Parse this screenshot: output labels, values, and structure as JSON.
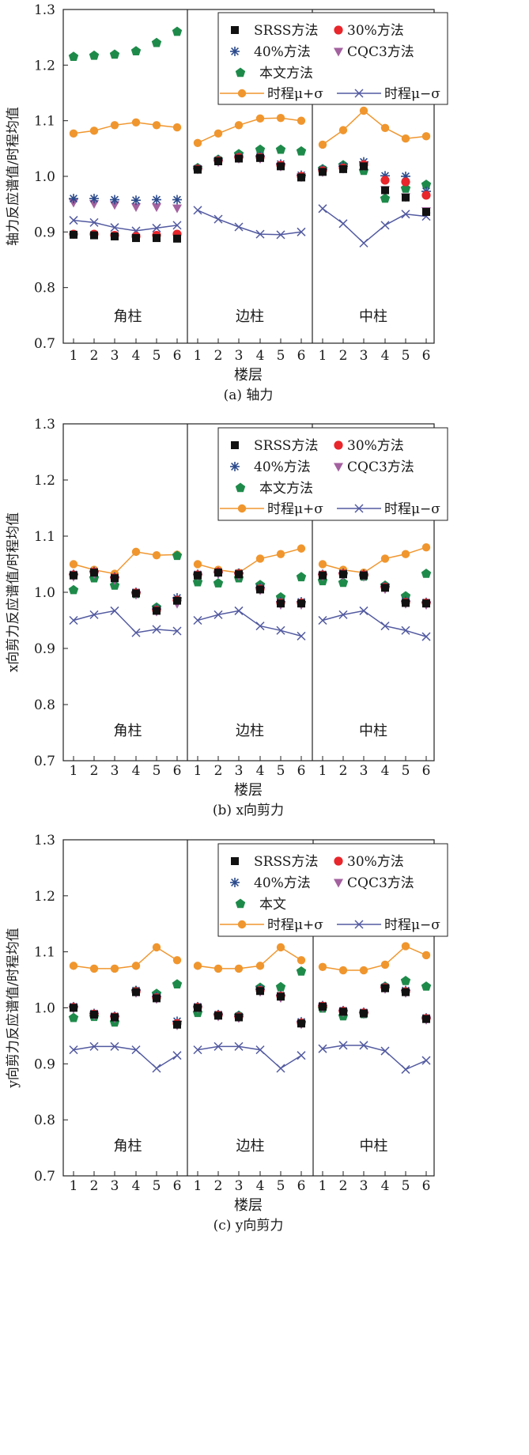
{
  "figure": {
    "xlabel": "楼层",
    "group_labels": [
      "角柱",
      "边柱",
      "中柱"
    ],
    "floor_ticks": [
      "1",
      "2",
      "3",
      "4",
      "5",
      "6"
    ],
    "y_ticks": [
      "0.7",
      "0.8",
      "0.9",
      "1.0",
      "1.1",
      "1.2",
      "1.3"
    ]
  },
  "legend": {
    "srss": "SRSS方法",
    "p30": "30%方法",
    "p40": "40%方法",
    "cqc3": "CQC3方法",
    "proposed_a": "本文方法",
    "proposed_b": "本文方法",
    "proposed_c": "本文",
    "th_plus": "时程μ+σ",
    "th_minus": "时程μ−σ"
  },
  "colors": {
    "srss": "#111111",
    "p30": "#e8262b",
    "p40": "#2b4a8c",
    "cqc3": "#a3619f",
    "proposed": "#1e8a4a",
    "th_plus": "#f0962e",
    "th_minus": "#525aa0"
  },
  "chart_data": [
    {
      "type": "line",
      "title": "(a) 轴力",
      "ylabel": "轴力反应谱值/时程均值",
      "xlabel": "楼层",
      "ylim": [
        0.7,
        1.3
      ],
      "groups": [
        "角柱",
        "边柱",
        "中柱"
      ],
      "categories": [
        "1",
        "2",
        "3",
        "4",
        "5",
        "6"
      ],
      "series": [
        {
          "key": "srss",
          "name": "SRSS方法",
          "values": [
            [
              0.895,
              0.894,
              0.892,
              0.889,
              0.889,
              0.888
            ],
            [
              1.012,
              1.027,
              1.032,
              1.033,
              1.018,
              0.998
            ],
            [
              1.008,
              1.013,
              1.018,
              0.975,
              0.962,
              0.936
            ]
          ]
        },
        {
          "key": "p30",
          "name": "30%方法",
          "values": [
            [
              0.896,
              0.896,
              0.894,
              0.892,
              0.894,
              0.896
            ],
            [
              1.013,
              1.028,
              1.034,
              1.034,
              1.02,
              1.0
            ],
            [
              1.01,
              1.015,
              1.021,
              0.993,
              0.99,
              0.966
            ]
          ]
        },
        {
          "key": "p40",
          "name": "40%方法",
          "values": [
            [
              0.96,
              0.96,
              0.958,
              0.957,
              0.958,
              0.958
            ],
            [
              1.014,
              1.029,
              1.035,
              1.036,
              1.022,
              1.002
            ],
            [
              1.012,
              1.018,
              1.026,
              1.001,
              1.0,
              0.973
            ]
          ]
        },
        {
          "key": "cqc3",
          "name": "CQC3方法",
          "values": [
            [
              0.953,
              0.951,
              0.949,
              0.945,
              0.945,
              0.943
            ],
            [
              1.013,
              1.026,
              1.032,
              1.032,
              1.018,
              0.999
            ],
            [
              1.008,
              1.014,
              1.018,
              0.976,
              0.963,
              0.938
            ]
          ]
        },
        {
          "key": "proposed",
          "name": "本文方法",
          "values": [
            [
              1.215,
              1.217,
              1.219,
              1.225,
              1.24,
              1.26
            ],
            [
              1.015,
              1.03,
              1.04,
              1.048,
              1.048,
              1.045
            ],
            [
              1.013,
              1.02,
              1.01,
              0.96,
              0.978,
              0.985
            ]
          ]
        },
        {
          "key": "th_plus",
          "name": "时程μ+σ",
          "values": [
            [
              1.077,
              1.082,
              1.092,
              1.097,
              1.092,
              1.088
            ],
            [
              1.06,
              1.077,
              1.092,
              1.104,
              1.105,
              1.1
            ],
            [
              1.057,
              1.083,
              1.118,
              1.087,
              1.068,
              1.072
            ]
          ]
        },
        {
          "key": "th_minus",
          "name": "时程μ−σ",
          "values": [
            [
              0.921,
              0.917,
              0.908,
              0.902,
              0.907,
              0.912
            ],
            [
              0.939,
              0.923,
              0.909,
              0.896,
              0.895,
              0.9
            ],
            [
              0.942,
              0.915,
              0.88,
              0.912,
              0.932,
              0.928
            ]
          ]
        }
      ]
    },
    {
      "type": "line",
      "title": "(b) x向剪力",
      "ylabel": "x向剪力反应谱值/时程均值",
      "xlabel": "楼层",
      "ylim": [
        0.7,
        1.3
      ],
      "groups": [
        "角柱",
        "边柱",
        "中柱"
      ],
      "categories": [
        "1",
        "2",
        "3",
        "4",
        "5",
        "6"
      ],
      "series": [
        {
          "key": "srss",
          "name": "SRSS方法",
          "values": [
            [
              1.03,
              1.035,
              1.025,
              0.998,
              0.967,
              0.985
            ],
            [
              1.03,
              1.035,
              1.032,
              1.005,
              0.98,
              0.98
            ],
            [
              1.03,
              1.032,
              1.03,
              1.008,
              0.981,
              0.98
            ]
          ]
        },
        {
          "key": "p30",
          "name": "30%方法",
          "values": [
            [
              1.031,
              1.036,
              1.026,
              0.999,
              0.968,
              0.986
            ],
            [
              1.031,
              1.036,
              1.033,
              1.006,
              0.981,
              0.981
            ],
            [
              1.031,
              1.033,
              1.031,
              1.009,
              0.982,
              0.981
            ]
          ]
        },
        {
          "key": "p40",
          "name": "40%方法",
          "values": [
            [
              1.032,
              1.037,
              1.027,
              1.0,
              0.97,
              0.99
            ],
            [
              1.032,
              1.036,
              1.034,
              1.008,
              0.983,
              0.983
            ],
            [
              1.032,
              1.034,
              1.032,
              1.01,
              0.984,
              0.982
            ]
          ]
        },
        {
          "key": "cqc3",
          "name": "CQC3方法",
          "values": [
            [
              1.028,
              1.033,
              1.022,
              0.996,
              0.966,
              0.98
            ],
            [
              1.029,
              1.033,
              1.03,
              1.004,
              0.978,
              0.978
            ],
            [
              1.029,
              1.03,
              1.028,
              1.006,
              0.98,
              0.978
            ]
          ]
        },
        {
          "key": "proposed",
          "name": "本文方法",
          "values": [
            [
              1.004,
              1.025,
              1.012,
              0.997,
              0.973,
              1.065
            ],
            [
              1.018,
              1.016,
              1.025,
              1.013,
              0.991,
              1.027
            ],
            [
              1.02,
              1.017,
              1.028,
              1.012,
              0.993,
              1.033
            ]
          ]
        },
        {
          "key": "th_plus",
          "name": "时程μ+σ",
          "values": [
            [
              1.05,
              1.04,
              1.033,
              1.072,
              1.066,
              1.067
            ],
            [
              1.05,
              1.04,
              1.035,
              1.06,
              1.068,
              1.078
            ],
            [
              1.05,
              1.04,
              1.035,
              1.06,
              1.068,
              1.08
            ]
          ]
        },
        {
          "key": "th_minus",
          "name": "时程μ−σ",
          "values": [
            [
              0.95,
              0.96,
              0.967,
              0.928,
              0.934,
              0.931
            ],
            [
              0.95,
              0.96,
              0.967,
              0.94,
              0.932,
              0.922
            ],
            [
              0.95,
              0.96,
              0.967,
              0.94,
              0.932,
              0.921
            ]
          ]
        }
      ]
    },
    {
      "type": "line",
      "title": "(c) y向剪力",
      "ylabel": "y向剪力反应谱值/时程均值",
      "xlabel": "楼层",
      "ylim": [
        0.7,
        1.3
      ],
      "groups": [
        "角柱",
        "边柱",
        "中柱"
      ],
      "categories": [
        "1",
        "2",
        "3",
        "4",
        "5",
        "6"
      ],
      "series": [
        {
          "key": "srss",
          "name": "SRSS方法",
          "values": [
            [
              1.0,
              0.988,
              0.983,
              1.028,
              1.017,
              0.97
            ],
            [
              1.0,
              0.986,
              0.983,
              1.03,
              1.02,
              0.972
            ],
            [
              1.002,
              0.993,
              0.99,
              1.035,
              1.028,
              0.98
            ]
          ]
        },
        {
          "key": "p30",
          "name": "30%方法",
          "values": [
            [
              1.001,
              0.989,
              0.984,
              1.029,
              1.018,
              0.972
            ],
            [
              1.001,
              0.987,
              0.984,
              1.031,
              1.021,
              0.973
            ],
            [
              1.003,
              0.994,
              0.991,
              1.036,
              1.029,
              0.981
            ]
          ]
        },
        {
          "key": "p40",
          "name": "40%方法",
          "values": [
            [
              1.002,
              0.99,
              0.985,
              1.031,
              1.02,
              0.976
            ],
            [
              1.002,
              0.988,
              0.985,
              1.033,
              1.022,
              0.975
            ],
            [
              1.004,
              0.995,
              0.992,
              1.037,
              1.031,
              0.982
            ]
          ]
        },
        {
          "key": "cqc3",
          "name": "CQC3方法",
          "values": [
            [
              0.999,
              0.987,
              0.982,
              1.027,
              1.016,
              0.969
            ],
            [
              0.999,
              0.985,
              0.982,
              1.029,
              1.018,
              0.971
            ],
            [
              1.001,
              0.992,
              0.989,
              1.034,
              1.027,
              0.979
            ]
          ]
        },
        {
          "key": "proposed",
          "name": "本文",
          "values": [
            [
              0.982,
              0.984,
              0.974,
              1.03,
              1.025,
              1.042
            ],
            [
              0.991,
              0.987,
              0.986,
              1.036,
              1.037,
              1.065
            ],
            [
              0.999,
              0.985,
              0.989,
              1.038,
              1.048,
              1.038
            ]
          ]
        },
        {
          "key": "th_plus",
          "name": "时程μ+σ",
          "values": [
            [
              1.075,
              1.07,
              1.07,
              1.075,
              1.108,
              1.085
            ],
            [
              1.075,
              1.07,
              1.07,
              1.075,
              1.108,
              1.085
            ],
            [
              1.073,
              1.067,
              1.067,
              1.077,
              1.11,
              1.094
            ]
          ]
        },
        {
          "key": "th_minus",
          "name": "时程μ−σ",
          "values": [
            [
              0.925,
              0.931,
              0.931,
              0.925,
              0.892,
              0.915
            ],
            [
              0.925,
              0.931,
              0.931,
              0.925,
              0.892,
              0.915
            ],
            [
              0.927,
              0.933,
              0.933,
              0.923,
              0.89,
              0.906
            ]
          ]
        }
      ]
    }
  ]
}
